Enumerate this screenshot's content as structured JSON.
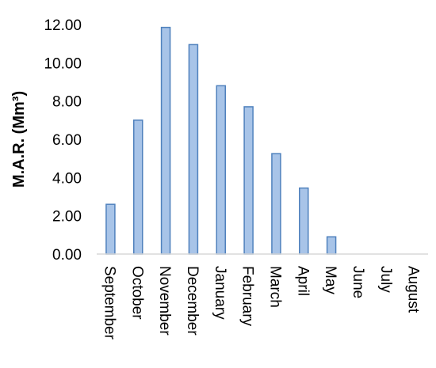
{
  "chart_data": {
    "type": "bar",
    "title": "",
    "xlabel": "",
    "ylabel": "M.A.R. (Mm³)",
    "ylim": [
      0,
      12
    ],
    "yticks": [
      "0.00",
      "2.00",
      "4.00",
      "6.00",
      "8.00",
      "10.00",
      "12.00"
    ],
    "categories": [
      "September",
      "October",
      "November",
      "December",
      "January",
      "February",
      "March",
      "April",
      "May",
      "June",
      "July",
      "August"
    ],
    "values": [
      2.6,
      7.0,
      11.85,
      10.95,
      8.8,
      7.7,
      5.25,
      3.45,
      0.9,
      0,
      0,
      0
    ],
    "grid": false,
    "legend": "none",
    "colors": {
      "bar_fill": "#a8c4e8",
      "bar_stroke": "#4f81bd"
    }
  }
}
